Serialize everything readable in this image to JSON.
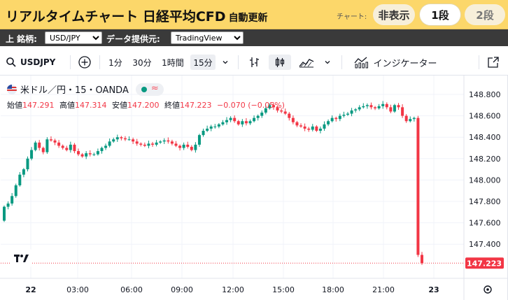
{
  "header": {
    "title": "リアルタイムチャート 日経平均CFD",
    "subtitle": "自動更新",
    "chart_label": "チャート:",
    "buttons": {
      "hide": "非表示",
      "one": "1段",
      "two": "2段"
    }
  },
  "selectors": {
    "symbol_label": "上 銘柄:",
    "symbol_value": "USD/JPY",
    "provider_label": "データ提供元:",
    "provider_value": "TradingView"
  },
  "toolbar": {
    "symbol": "USDJPY",
    "intervals": [
      "1分",
      "30分",
      "1時間",
      "15分"
    ],
    "active_interval": "15分",
    "indicators_label": "インジケーター",
    "icons": [
      "search-icon",
      "add-compare-icon",
      "chevron-down-icon",
      "bar-style-icon",
      "candle-style-icon",
      "area-style-icon",
      "chevron-down-icon",
      "indicators-icon",
      "popout-icon"
    ]
  },
  "legend": {
    "symbol_title": "米ドル／円・15・OANDA",
    "open_label": "始値",
    "open": "147.291",
    "high_label": "高値",
    "high": "147.314",
    "low_label": "安値",
    "low": "147.200",
    "close_label": "終値",
    "close": "147.223",
    "change": "−0.070 (−0.05%)"
  },
  "price_badge": "147.223",
  "colors": {
    "up": "#089981",
    "down": "#f23645",
    "accent": "#fcd76a",
    "grid": "#f0f3fa"
  },
  "chart_data": {
    "type": "candlestick",
    "symbol": "USDJPY",
    "interval": "15",
    "y_ticks": [
      "148.800",
      "148.600",
      "148.400",
      "148.200",
      "148.000",
      "147.800",
      "147.600",
      "147.400"
    ],
    "x_ticks": [
      "22",
      "03:00",
      "06:00",
      "09:00",
      "12:00",
      "15:00",
      "18:00",
      "21:00",
      "23"
    ],
    "ylim": [
      147.2,
      148.9
    ],
    "last_price": 147.223,
    "close_series": [
      147.75,
      147.78,
      147.85,
      147.95,
      148.05,
      148.1,
      148.2,
      148.28,
      148.35,
      148.3,
      148.26,
      148.38,
      148.37,
      148.35,
      148.32,
      148.3,
      148.28,
      148.33,
      148.27,
      148.24,
      148.22,
      148.25,
      148.24,
      148.24,
      148.27,
      148.3,
      148.32,
      148.36,
      148.38,
      148.4,
      148.39,
      148.38,
      148.38,
      148.36,
      148.34,
      148.33,
      148.32,
      148.34,
      148.33,
      148.35,
      148.36,
      148.37,
      148.36,
      148.34,
      148.32,
      148.3,
      148.33,
      148.31,
      148.28,
      148.33,
      148.42,
      148.46,
      148.48,
      148.5,
      148.5,
      148.52,
      148.54,
      148.56,
      148.58,
      148.55,
      148.52,
      148.55,
      148.53,
      148.55,
      148.58,
      148.6,
      148.63,
      148.67,
      148.7,
      148.68,
      148.65,
      148.64,
      148.62,
      148.58,
      148.54,
      148.51,
      148.5,
      148.48,
      148.47,
      148.5,
      148.46,
      148.48,
      148.52,
      148.55,
      148.58,
      148.57,
      148.6,
      148.61,
      148.62,
      148.65,
      148.66,
      148.68,
      148.69,
      148.7,
      148.68,
      148.67,
      148.69,
      148.71,
      148.68,
      148.64,
      148.7,
      148.68,
      148.6,
      148.55,
      148.57,
      148.58,
      147.3,
      147.223
    ]
  }
}
